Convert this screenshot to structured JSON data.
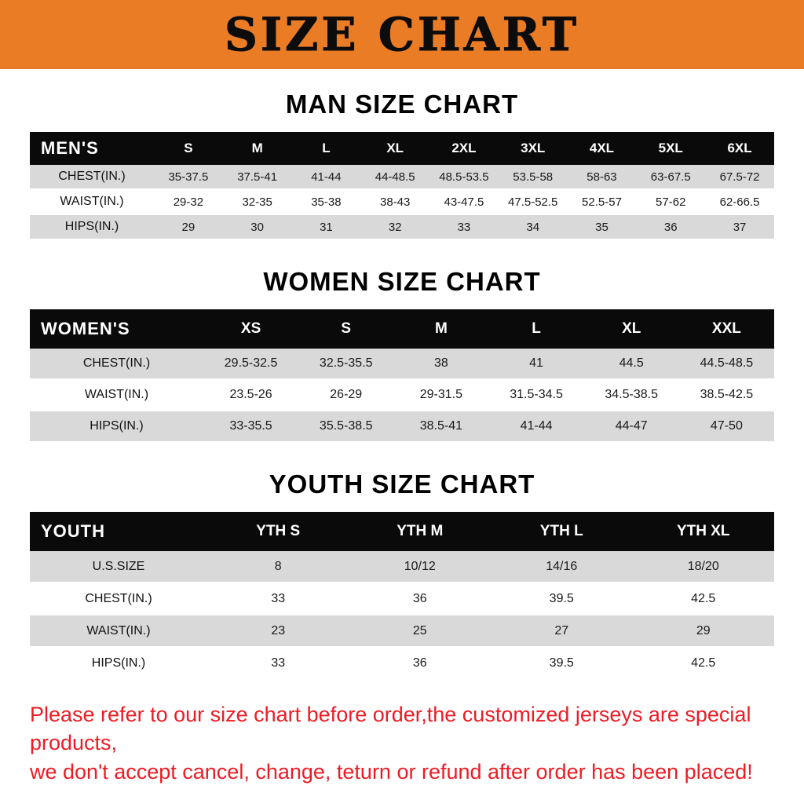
{
  "banner": {
    "title": "SIZE CHART",
    "bg_color": "#EA7C26",
    "text_color": "#0c0c0c"
  },
  "colors": {
    "table_header_bg": "#0a0a0a",
    "table_row_gray": "#d9d9d9",
    "footer_red": "#ED1C24"
  },
  "sections": [
    {
      "heading": "MAN SIZE CHART",
      "table": {
        "header": [
          "MEN'S",
          "S",
          "M",
          "L",
          "XL",
          "2XL",
          "3XL",
          "4XL",
          "5XL",
          "6XL"
        ],
        "rows": [
          [
            "CHEST(IN.)",
            "35-37.5",
            "37.5-41",
            "41-44",
            "44-48.5",
            "48.5-53.5",
            "53.5-58",
            "58-63",
            "63-67.5",
            "67.5-72"
          ],
          [
            "WAIST(IN.)",
            "29-32",
            "32-35",
            "35-38",
            "38-43",
            "43-47.5",
            "47.5-52.5",
            "52.5-57",
            "57-62",
            "62-66.5"
          ],
          [
            "HIPS(IN.)",
            "29",
            "30",
            "31",
            "32",
            "33",
            "34",
            "35",
            "36",
            "37"
          ]
        ]
      }
    },
    {
      "heading": "WOMEN SIZE CHART",
      "table": {
        "header": [
          "WOMEN'S",
          "XS",
          "S",
          "M",
          "L",
          "XL",
          "XXL"
        ],
        "rows": [
          [
            "CHEST(IN.)",
            "29.5-32.5",
            "32.5-35.5",
            "38",
            "41",
            "44.5",
            "44.5-48.5"
          ],
          [
            "WAIST(IN.)",
            "23.5-26",
            "26-29",
            "29-31.5",
            "31.5-34.5",
            "34.5-38.5",
            "38.5-42.5"
          ],
          [
            "HIPS(IN.)",
            "33-35.5",
            "35.5-38.5",
            "38.5-41",
            "41-44",
            "44-47",
            "47-50"
          ]
        ]
      }
    },
    {
      "heading": "YOUTH SIZE CHART",
      "table": {
        "header": [
          "YOUTH",
          "YTH S",
          "YTH M",
          "YTH L",
          "YTH XL"
        ],
        "rows": [
          [
            "U.S.SIZE",
            "8",
            "10/12",
            "14/16",
            "18/20"
          ],
          [
            "CHEST(IN.)",
            "33",
            "36",
            "39.5",
            "42.5"
          ],
          [
            "WAIST(IN.)",
            "23",
            "25",
            "27",
            "29"
          ],
          [
            "HIPS(IN.)",
            "33",
            "36",
            "39.5",
            "42.5"
          ]
        ]
      }
    }
  ],
  "footer": {
    "lines": [
      "Please refer to our size chart before order,the customized jerseys are special products,",
      "we don't accept cancel, change, teturn or refund after order has been placed!"
    ]
  }
}
